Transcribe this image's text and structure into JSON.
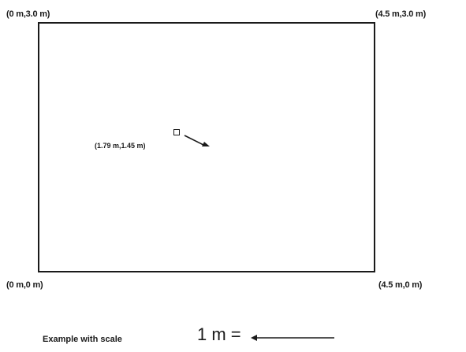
{
  "corners": {
    "top_left": "(0 m,3.0 m)",
    "top_right": "(4.5 m,3.0 m)",
    "bottom_left": "(0 m,0 m)",
    "bottom_right": "(4.5 m,0 m)"
  },
  "point": {
    "label": "(1.79 m,1.45 m)",
    "x_m": 1.79,
    "y_m": 1.45
  },
  "scale": {
    "text": "Example with scale",
    "value": "1 m ="
  },
  "colors": {
    "line": "#1a1a1a",
    "background": "#ffffff"
  }
}
